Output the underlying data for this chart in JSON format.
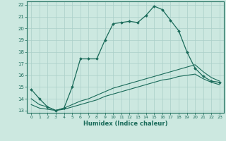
{
  "xlabel": "Humidex (Indice chaleur)",
  "bg_color": "#cce8e0",
  "line_color": "#1a6b5a",
  "grid_color": "#aacfc8",
  "xlim": [
    -0.5,
    23.5
  ],
  "ylim": [
    12.8,
    22.3
  ],
  "xticks": [
    0,
    1,
    2,
    3,
    4,
    5,
    6,
    7,
    8,
    9,
    10,
    11,
    12,
    13,
    14,
    15,
    16,
    17,
    18,
    19,
    20,
    21,
    22,
    23
  ],
  "yticks": [
    13,
    14,
    15,
    16,
    17,
    18,
    19,
    20,
    21,
    22
  ],
  "main_x": [
    0,
    1,
    2,
    3,
    4,
    5,
    6,
    7,
    8,
    9,
    10,
    11,
    12,
    13,
    14,
    15,
    16,
    17,
    18,
    19,
    20,
    21,
    22,
    23
  ],
  "main_y": [
    14.8,
    14.0,
    13.3,
    13.0,
    13.2,
    15.0,
    17.4,
    17.4,
    17.4,
    19.0,
    20.4,
    20.5,
    20.6,
    20.5,
    21.1,
    21.9,
    21.6,
    20.7,
    19.8,
    18.0,
    16.6,
    15.9,
    15.5,
    15.4
  ],
  "line2_x": [
    0,
    1,
    2,
    3,
    4,
    5,
    6,
    7,
    8,
    9,
    10,
    11,
    12,
    13,
    14,
    15,
    16,
    17,
    18,
    19,
    20,
    21,
    22,
    23
  ],
  "line2_y": [
    14.0,
    13.5,
    13.3,
    13.0,
    13.2,
    13.5,
    13.8,
    14.0,
    14.3,
    14.6,
    14.9,
    15.1,
    15.3,
    15.5,
    15.7,
    15.9,
    16.1,
    16.3,
    16.5,
    16.7,
    16.9,
    16.3,
    15.8,
    15.5
  ],
  "line3_x": [
    0,
    1,
    2,
    3,
    4,
    5,
    6,
    7,
    8,
    9,
    10,
    11,
    12,
    13,
    14,
    15,
    16,
    17,
    18,
    19,
    20,
    21,
    22,
    23
  ],
  "line3_y": [
    13.5,
    13.2,
    13.1,
    13.0,
    13.1,
    13.3,
    13.5,
    13.7,
    13.9,
    14.2,
    14.4,
    14.6,
    14.8,
    15.0,
    15.2,
    15.4,
    15.6,
    15.7,
    15.9,
    16.0,
    16.1,
    15.7,
    15.4,
    15.2
  ]
}
